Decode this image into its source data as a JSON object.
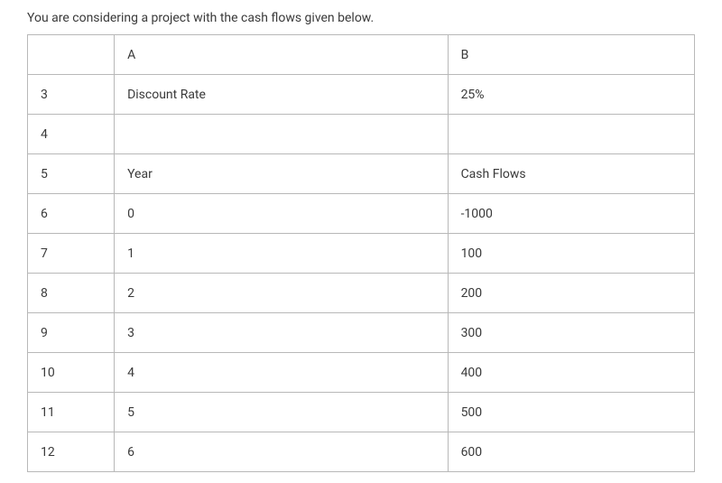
{
  "intro": "You are considering a project with the cash flows given below.",
  "table": {
    "border_color": "#b8b8b8",
    "text_color": "#3a3a3a",
    "background_color": "#ffffff",
    "font_size": 14,
    "columns": [
      {
        "key": "rownum",
        "header": "",
        "width_pct": 13
      },
      {
        "key": "A",
        "header": "A",
        "width_pct": 50
      },
      {
        "key": "B",
        "header": "B",
        "width_pct": 37
      }
    ],
    "rows": [
      {
        "rownum": "",
        "A": "A",
        "B": "B"
      },
      {
        "rownum": "3",
        "A": "Discount Rate",
        "B": "25%"
      },
      {
        "rownum": "4",
        "A": "",
        "B": ""
      },
      {
        "rownum": "5",
        "A": "Year",
        "B": "Cash Flows"
      },
      {
        "rownum": "6",
        "A": "0",
        "B": "-1000"
      },
      {
        "rownum": "7",
        "A": "1",
        "B": "100"
      },
      {
        "rownum": "8",
        "A": "2",
        "B": "200"
      },
      {
        "rownum": "9",
        "A": "3",
        "B": "300"
      },
      {
        "rownum": "10",
        "A": "4",
        "B": "400"
      },
      {
        "rownum": "11",
        "A": "5",
        "B": "500"
      },
      {
        "rownum": "12",
        "A": "6",
        "B": "600"
      }
    ]
  }
}
